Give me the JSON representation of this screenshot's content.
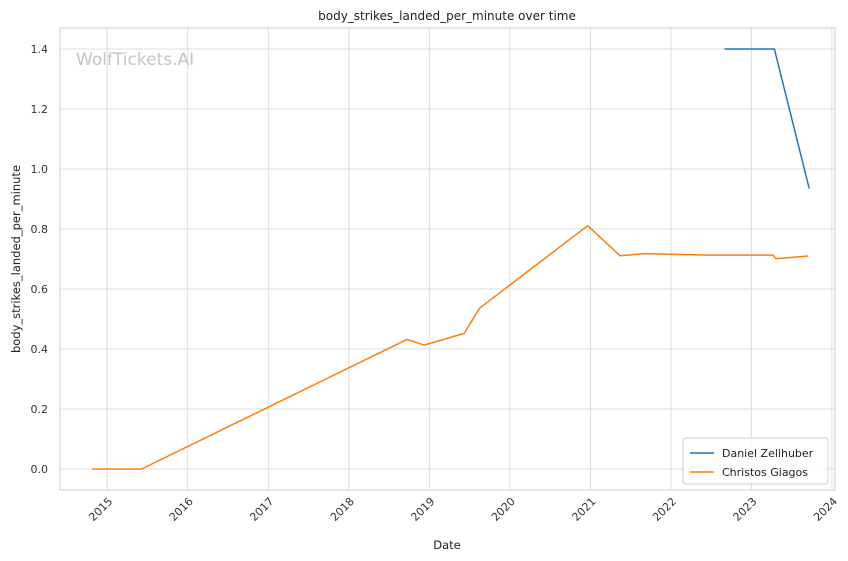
{
  "chart_data": {
    "type": "line",
    "title": "body_strikes_landed_per_minute over time",
    "xlabel": "Date",
    "ylabel": "body_strikes_landed_per_minute",
    "watermark": "WolfTickets.AI",
    "xlim": [
      "2014-06-01",
      "2024-01-15"
    ],
    "ylim": [
      -0.07,
      1.47
    ],
    "x_ticks": [
      "2015-01-01",
      "2016-01-01",
      "2017-01-01",
      "2018-01-01",
      "2019-01-01",
      "2020-01-01",
      "2021-01-01",
      "2022-01-01",
      "2023-01-01",
      "2024-01-01"
    ],
    "x_tick_labels": [
      "2015",
      "2016",
      "2017",
      "2018",
      "2019",
      "2020",
      "2021",
      "2022",
      "2023",
      "2024"
    ],
    "y_ticks": [
      0.0,
      0.2,
      0.4,
      0.6,
      0.8,
      1.0,
      1.2,
      1.4
    ],
    "y_tick_labels": [
      "0.0",
      "0.2",
      "0.4",
      "0.6",
      "0.8",
      "1.0",
      "1.2",
      "1.4"
    ],
    "grid": true,
    "legend_position": "lower-right",
    "series": [
      {
        "name": "Daniel Zellhuber",
        "color": "#1f77b4",
        "x": [
          "2022-09-01",
          "2023-04-15",
          "2023-09-20"
        ],
        "y": [
          1.4,
          1.4,
          0.935
        ]
      },
      {
        "name": "Christos Giagos",
        "color": "#ff7f0e",
        "x": [
          "2014-10-25",
          "2015-06-06",
          "2018-09-22",
          "2018-12-08",
          "2019-06-08",
          "2019-08-17",
          "2020-12-19",
          "2021-05-15",
          "2021-09-04",
          "2022-06-25",
          "2023-04-08",
          "2023-04-22",
          "2023-09-16"
        ],
        "y": [
          0.0,
          0.0,
          0.432,
          0.413,
          0.452,
          0.536,
          0.811,
          0.711,
          0.718,
          0.713,
          0.713,
          0.701,
          0.71
        ]
      }
    ]
  }
}
